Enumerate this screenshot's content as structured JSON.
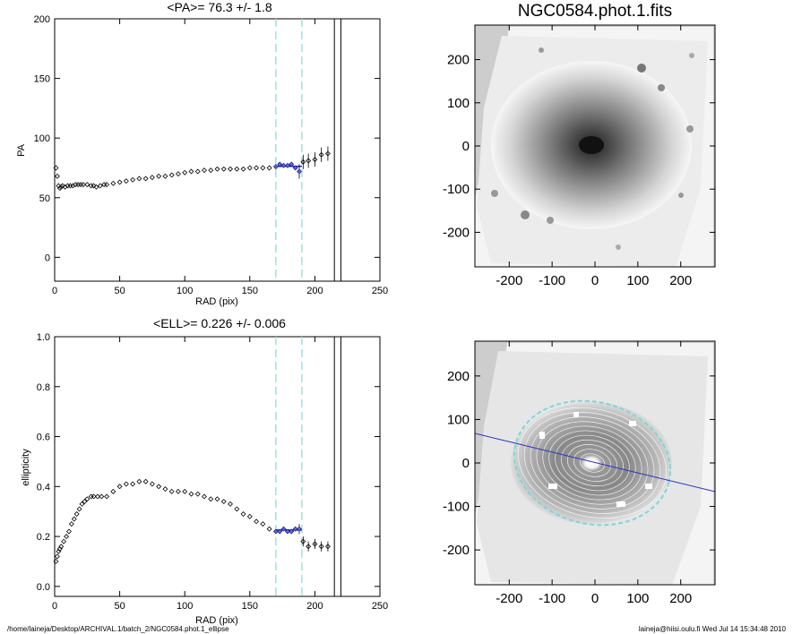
{
  "footer": {
    "left": "/home/laineja/Desktop/ARCHIVAL.1/batch_2/NGC0584.phot.1_ellipse",
    "right": "laineja@hiisi.oulu.fi  Wed Jul 14 15:34:48 2010"
  },
  "images": {
    "title": "NGC0584.phot.1.fits",
    "ticks": [
      "-200",
      "-100",
      "0",
      "100",
      "200"
    ],
    "ylim": [
      -280,
      280
    ],
    "xlim": [
      -280,
      280
    ]
  },
  "chart_data": [
    {
      "type": "scatter",
      "title": "<PA>=  76.3 +/-   1.8",
      "xlabel": "RAD (pix)",
      "ylabel": "PA",
      "xlim": [
        0,
        250
      ],
      "ylim": [
        -20,
        200
      ],
      "xticks": [
        "0",
        "50",
        "100",
        "150",
        "200",
        "250"
      ],
      "yticks": [
        "0",
        "50",
        "100",
        "150",
        "200"
      ],
      "vlines_dashed": [
        170,
        190
      ],
      "vlines_solid": [
        215,
        220
      ],
      "fit_range": [
        170,
        190
      ],
      "fit_value": 76.3,
      "series": [
        {
          "x": [
            1,
            2,
            3,
            4,
            5,
            6,
            8,
            10,
            12,
            14,
            16,
            18,
            20,
            22,
            25,
            28,
            30,
            32,
            35,
            38,
            40,
            45,
            50,
            55,
            60,
            65,
            70,
            75,
            80,
            85,
            90,
            95,
            100,
            105,
            110,
            115,
            120,
            125,
            130,
            135,
            140,
            145,
            150,
            155,
            160,
            165,
            170,
            173,
            176,
            179,
            182,
            185,
            188,
            191,
            195,
            200,
            205,
            210
          ],
          "y": [
            75,
            68,
            60,
            58,
            59,
            60,
            59,
            60,
            60,
            60,
            61,
            61,
            61,
            61,
            61,
            60,
            60,
            59,
            60,
            61,
            61,
            62,
            63,
            64,
            65,
            66,
            66,
            67,
            68,
            68,
            69,
            70,
            71,
            72,
            72,
            73,
            73,
            74,
            74,
            74,
            74,
            74,
            75,
            75,
            75,
            75,
            76,
            78,
            77,
            77,
            78,
            75,
            72,
            80,
            81,
            82,
            86,
            87
          ]
        }
      ]
    },
    {
      "type": "scatter",
      "title": "<ELL>= 0.226 +/-  0.006",
      "xlabel": "RAD (pix)",
      "ylabel": "ellipticity",
      "xlim": [
        0,
        250
      ],
      "ylim": [
        -0.04,
        1.0
      ],
      "xticks": [
        "0",
        "50",
        "100",
        "150",
        "200",
        "250"
      ],
      "yticks": [
        "0.0",
        "0.2",
        "0.4",
        "0.6",
        "0.8",
        "1.0"
      ],
      "vlines_dashed": [
        170,
        190
      ],
      "vlines_solid": [
        215,
        220
      ],
      "fit_range": [
        170,
        190
      ],
      "fit_value": 0.226,
      "series": [
        {
          "x": [
            1,
            2,
            3,
            4,
            5,
            7,
            9,
            11,
            13,
            15,
            17,
            19,
            21,
            23,
            25,
            28,
            30,
            33,
            36,
            40,
            45,
            50,
            55,
            60,
            65,
            70,
            75,
            80,
            85,
            90,
            95,
            100,
            105,
            110,
            115,
            120,
            125,
            130,
            135,
            140,
            145,
            150,
            155,
            160,
            165,
            170,
            173,
            176,
            179,
            182,
            185,
            188,
            191,
            195,
            200,
            205,
            210
          ],
          "y": [
            0.1,
            0.12,
            0.14,
            0.15,
            0.16,
            0.18,
            0.2,
            0.22,
            0.25,
            0.27,
            0.29,
            0.31,
            0.33,
            0.34,
            0.35,
            0.36,
            0.36,
            0.36,
            0.36,
            0.36,
            0.38,
            0.4,
            0.41,
            0.41,
            0.42,
            0.42,
            0.41,
            0.4,
            0.39,
            0.38,
            0.38,
            0.38,
            0.37,
            0.37,
            0.36,
            0.35,
            0.35,
            0.34,
            0.33,
            0.31,
            0.29,
            0.28,
            0.26,
            0.25,
            0.23,
            0.22,
            0.22,
            0.23,
            0.22,
            0.22,
            0.23,
            0.23,
            0.18,
            0.16,
            0.17,
            0.16,
            0.16
          ]
        }
      ]
    }
  ]
}
